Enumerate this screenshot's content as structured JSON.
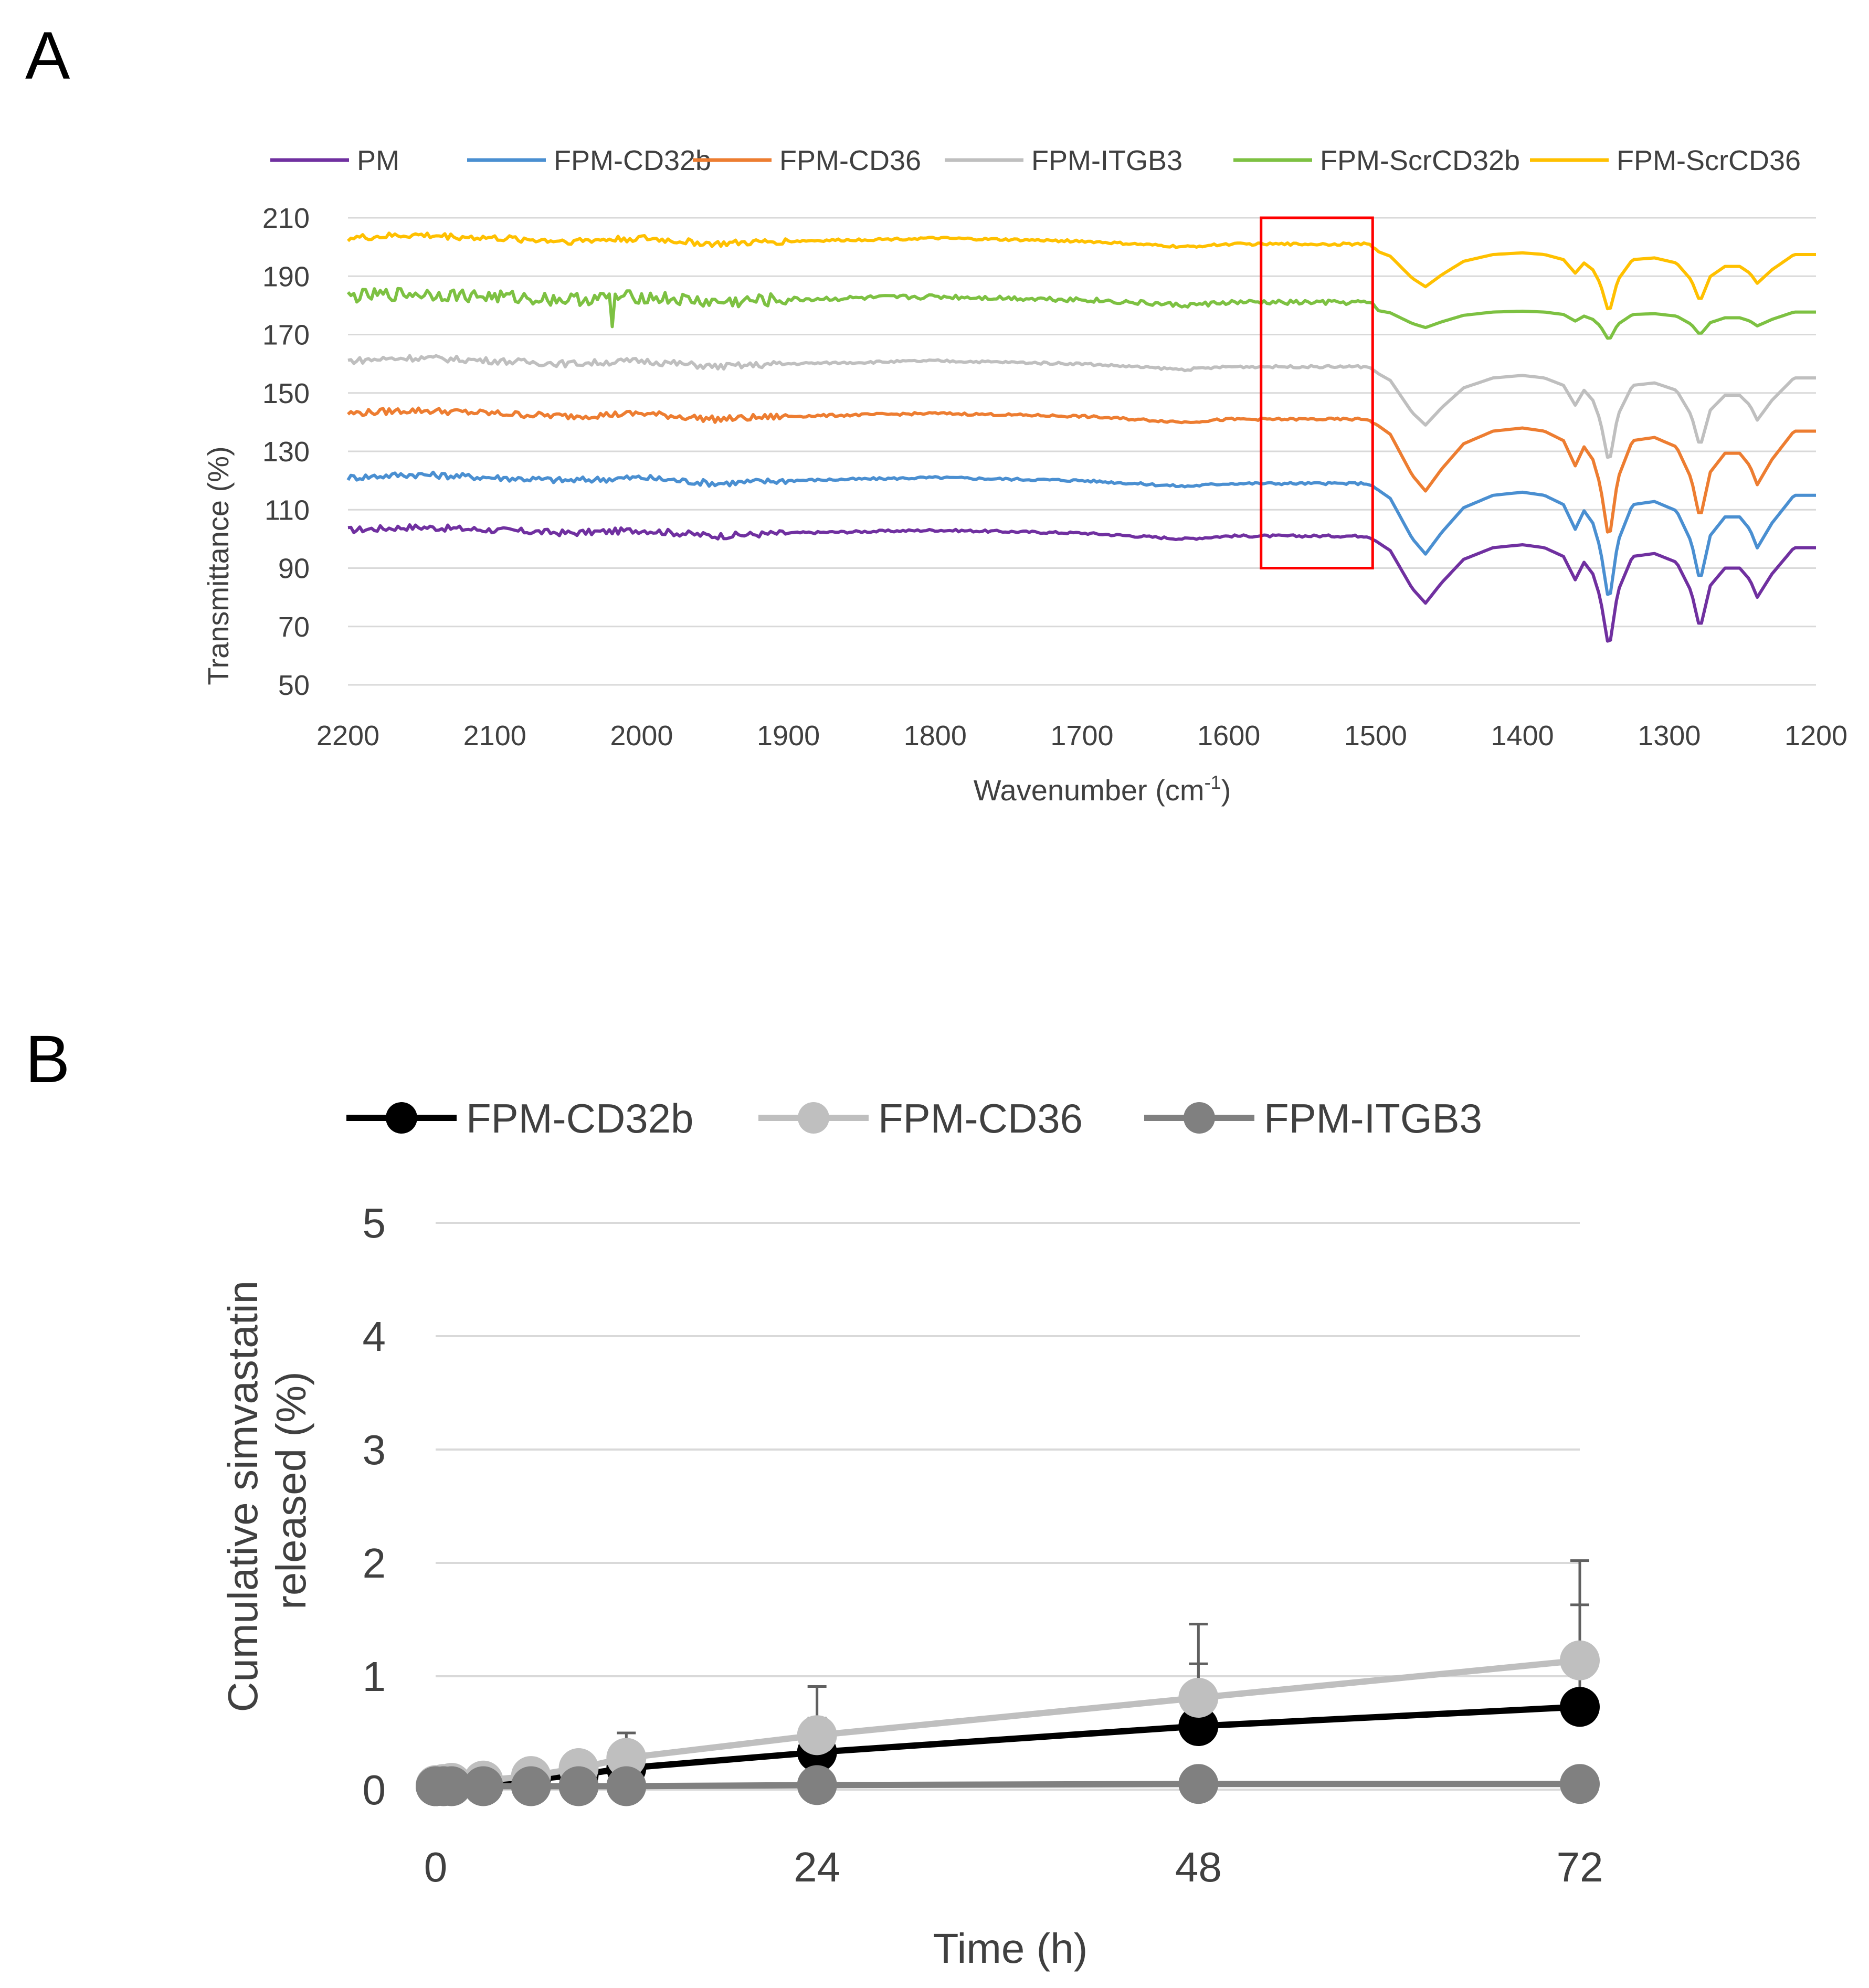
{
  "panels": {
    "a_letter": "A",
    "b_letter": "B"
  },
  "chart_data": [
    {
      "type": "line",
      "panel": "A",
      "title": "",
      "xlabel": "Wavenumber (cm",
      "xlabel_sup": "-1",
      "xlabel_end": ")",
      "ylabel": "Transmittance (%)",
      "xlim": [
        2200,
        1200
      ],
      "ylim": [
        50,
        210
      ],
      "x_ticks": [
        "2200",
        "2100",
        "2000",
        "1900",
        "1800",
        "1700",
        "1600",
        "1500",
        "1400",
        "1300",
        "1200"
      ],
      "y_ticks": [
        "210",
        "190",
        "170",
        "150",
        "130",
        "110",
        "90",
        "70",
        "50"
      ],
      "grid": true,
      "legend_position": "top",
      "highlight_box": {
        "x_range": [
          1578,
          1502
        ],
        "y_range": [
          90,
          210
        ],
        "color": "#ff0000"
      },
      "series": [
        {
          "name": "PM",
          "color": "#7030a0",
          "offset": 0
        },
        {
          "name": "FPM-CD32b",
          "color": "#4a8fd1",
          "offset": 18
        },
        {
          "name": "FPM-CD36",
          "color": "#ed7d31",
          "offset": 40
        },
        {
          "name": "FPM-ITGB3",
          "color": "#bfbfbf",
          "offset": 58
        },
        {
          "name": "FPM-ScrCD32b",
          "color": "#7dc142",
          "offset": 80
        },
        {
          "name": "FPM-ScrCD36",
          "color": "#ffc000",
          "offset": 100
        }
      ],
      "baseline_profile": {
        "x": [
          2200,
          2160,
          2150,
          2100,
          2050,
          2000,
          1950,
          1900,
          1800,
          1700,
          1630,
          1600,
          1550,
          1505,
          1490,
          1475,
          1466,
          1455,
          1440,
          1420,
          1400,
          1385,
          1372,
          1364,
          1358,
          1352,
          1347,
          1341,
          1335,
          1325,
          1310,
          1295,
          1285,
          1279,
          1272,
          1262,
          1252,
          1245,
          1240,
          1230,
          1215,
          1200
        ],
        "y": [
          103,
          104,
          104,
          103,
          102,
          103,
          101,
          102,
          103,
          102,
          100,
          101,
          101,
          101,
          96,
          83,
          78,
          85,
          93,
          97,
          98,
          97,
          94,
          86,
          92,
          88,
          80,
          62,
          82,
          94,
          95,
          92,
          82,
          69,
          84,
          90,
          90,
          86,
          80,
          88,
          97,
          97
        ]
      },
      "peak_scales": [
        1.0,
        1.06,
        1.08,
        0.85,
        0.28,
        0.58
      ]
    },
    {
      "type": "line",
      "panel": "B",
      "title": "",
      "xlabel": "Time (h)",
      "ylabel_lines": [
        "Cumulative simvastatin",
        "released (%)"
      ],
      "xlim": [
        0,
        72
      ],
      "ylim": [
        0,
        5
      ],
      "x_ticks": [
        "0",
        "24",
        "48",
        "72"
      ],
      "y_ticks": [
        "0",
        "1",
        "2",
        "3",
        "4",
        "5"
      ],
      "grid": true,
      "legend_position": "top",
      "x": [
        0,
        0.5,
        1,
        3,
        6,
        9,
        12,
        24,
        48,
        72
      ],
      "series": [
        {
          "name": "FPM-CD32b",
          "color": "#000000",
          "values": [
            0.03,
            0.04,
            0.04,
            0.06,
            0.09,
            0.13,
            0.19,
            0.33,
            0.56,
            0.73
          ],
          "error": [
            0.0,
            0.0,
            0.0,
            0.0,
            0.0,
            0.1,
            0.12,
            0.3,
            0.55,
            0.9
          ]
        },
        {
          "name": "FPM-CD36",
          "color": "#bfbfbf",
          "values": [
            0.04,
            0.05,
            0.06,
            0.08,
            0.12,
            0.19,
            0.28,
            0.48,
            0.81,
            1.14
          ],
          "error": [
            0.0,
            0.0,
            0.0,
            0.0,
            0.0,
            0.1,
            0.22,
            0.43,
            0.65,
            0.88
          ]
        },
        {
          "name": "FPM-ITGB3",
          "color": "#808080",
          "values": [
            0.03,
            0.03,
            0.03,
            0.03,
            0.03,
            0.03,
            0.03,
            0.04,
            0.05,
            0.05
          ],
          "error": [
            0,
            0,
            0,
            0,
            0,
            0,
            0,
            0,
            0,
            0
          ]
        }
      ]
    }
  ]
}
